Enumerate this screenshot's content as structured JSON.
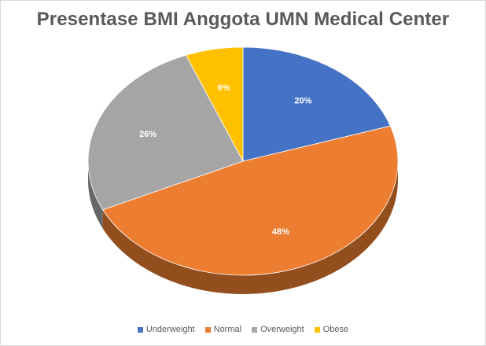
{
  "chart_data": {
    "type": "pie",
    "title": "Presentase BMI Anggota UMN Medical Center",
    "categories": [
      "Underweight",
      "Normal",
      "Overweight",
      "Obese"
    ],
    "values": [
      20,
      48,
      26,
      6
    ],
    "data_labels": [
      "20%",
      "48%",
      "26%",
      "6%"
    ],
    "colors": [
      "#4472c4",
      "#ed7d31",
      "#a5a5a5",
      "#ffc000"
    ],
    "legend_position": "bottom",
    "style": "3d"
  }
}
